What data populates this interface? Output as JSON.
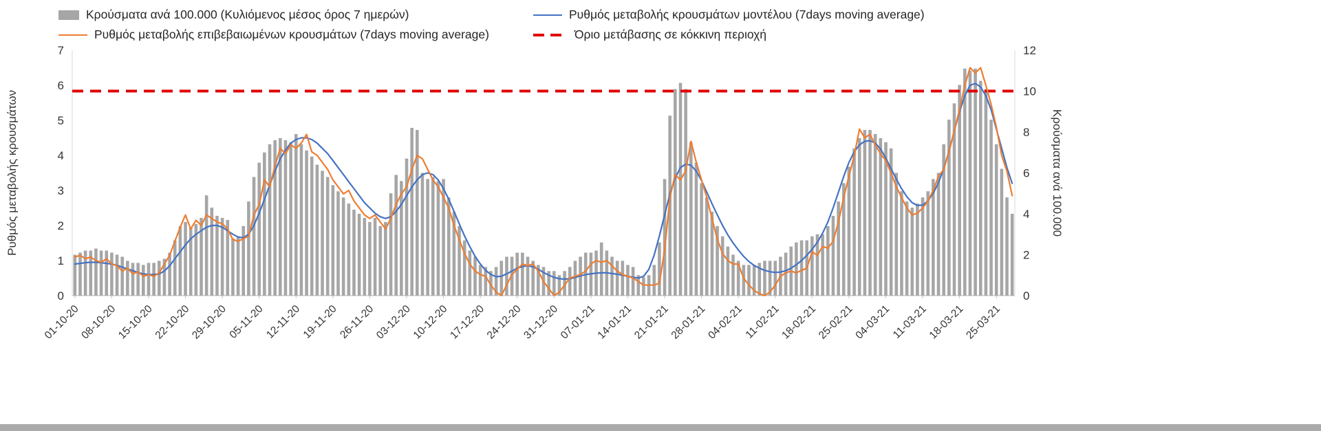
{
  "legend": {
    "bars_label": "Κρούσματα ανά 100.000 (Κυλιόμενος μέσος όρος 7 ημερών)",
    "model_label": "Ρυθμός μεταβολής κρουσμάτων μοντέλου (7days moving average)",
    "confirmed_label": "Ρυθμός μεταβολής επιβεβαιωμένων κρουσμάτων (7days moving average)",
    "threshold_label": "Όριο μετάβασης σε κόκκινη περιοχή"
  },
  "axes": {
    "left_title": "Ρυθμός μεταβολής κρουσμάτων",
    "right_title": "Κρούσματα ανά 100.000"
  },
  "chart_data": {
    "type": "bar+line combo, daily time series",
    "x_unit": "day index from 01-10-20, one bar per day",
    "x_tick_labels": [
      "01-10-20",
      "08-10-20",
      "15-10-20",
      "22-10-20",
      "29-10-20",
      "05-11-20",
      "12-11-20",
      "19-11-20",
      "26-11-20",
      "03-12-20",
      "10-12-20",
      "17-12-20",
      "24-12-20",
      "31-12-20",
      "07-01-21",
      "14-01-21",
      "21-01-21",
      "28-01-21",
      "04-02-21",
      "11-02-21",
      "18-02-21",
      "25-02-21",
      "04-03-21",
      "11-03-21",
      "18-03-21",
      "25-03-21"
    ],
    "x_tick_positions": [
      0,
      7,
      14,
      21,
      28,
      35,
      42,
      49,
      56,
      63,
      70,
      77,
      84,
      91,
      98,
      105,
      112,
      119,
      126,
      133,
      140,
      147,
      154,
      161,
      168,
      175
    ],
    "left_axis": {
      "title": "Ρυθμός μεταβολής κρουσμάτων",
      "min": 0,
      "max": 7,
      "ticks": [
        0,
        1,
        2,
        3,
        4,
        5,
        6,
        7
      ]
    },
    "right_axis": {
      "title": "Κρούσματα ανά 100.000",
      "min": 0,
      "max": 12,
      "ticks": [
        0,
        2,
        4,
        6,
        8,
        10,
        12
      ]
    },
    "threshold": {
      "label": "Όριο μετάβασης σε κόκκινη περιοχή",
      "value_right_axis": 10
    },
    "colors": {
      "bars": "#a6a6a6",
      "model": "#4472c4",
      "confirmed": "#ed7d31",
      "threshold": "#e00000",
      "axis": "#bfbfbf",
      "tick_text": "#333333"
    },
    "series_bars": {
      "name": "Κρούσματα ανά 100.000 (Κυλιόμενος μέσος όρος 7 ημερών)",
      "axis": "right",
      "values": [
        2.0,
        2.1,
        2.2,
        2.2,
        2.3,
        2.2,
        2.2,
        2.1,
        2.0,
        1.9,
        1.7,
        1.6,
        1.6,
        1.5,
        1.6,
        1.6,
        1.7,
        1.8,
        2.1,
        2.7,
        3.4,
        3.6,
        3.3,
        3.5,
        3.8,
        4.9,
        4.3,
        3.9,
        3.8,
        3.7,
        2.8,
        2.9,
        3.4,
        4.6,
        5.8,
        6.5,
        7.0,
        7.4,
        7.6,
        7.7,
        7.6,
        7.5,
        7.9,
        7.4,
        7.1,
        6.8,
        6.4,
        6.1,
        5.8,
        5.4,
        5.1,
        4.8,
        4.5,
        4.2,
        4.0,
        3.8,
        3.6,
        3.8,
        3.4,
        3.6,
        5.0,
        5.9,
        5.6,
        6.7,
        8.2,
        8.1,
        6.0,
        5.7,
        5.8,
        5.6,
        5.7,
        4.8,
        4.1,
        3.4,
        2.7,
        2.2,
        1.9,
        1.5,
        1.4,
        1.2,
        1.4,
        1.7,
        1.9,
        1.9,
        2.1,
        2.1,
        1.9,
        1.7,
        1.5,
        1.4,
        1.2,
        1.2,
        1.0,
        1.2,
        1.4,
        1.7,
        1.9,
        2.1,
        2.1,
        2.2,
        2.6,
        2.2,
        1.9,
        1.7,
        1.7,
        1.5,
        1.4,
        1.0,
        0.9,
        1.0,
        1.5,
        2.6,
        5.7,
        8.8,
        10.1,
        10.4,
        10.1,
        7.5,
        6.5,
        5.5,
        4.8,
        4.1,
        3.4,
        2.9,
        2.4,
        2.0,
        1.7,
        1.5,
        1.5,
        1.5,
        1.6,
        1.7,
        1.7,
        1.7,
        1.9,
        2.1,
        2.4,
        2.6,
        2.7,
        2.7,
        2.9,
        3.0,
        3.0,
        3.4,
        3.9,
        4.6,
        5.5,
        6.3,
        7.2,
        7.7,
        8.1,
        8.1,
        7.9,
        7.7,
        7.5,
        7.2,
        6.0,
        5.1,
        4.6,
        4.3,
        4.5,
        4.8,
        5.1,
        5.7,
        6.0,
        7.4,
        8.6,
        9.4,
        10.3,
        11.1,
        11.0,
        11.1,
        10.5,
        10.1,
        8.6,
        7.4,
        6.2,
        4.8,
        4.0
      ]
    },
    "series_model": {
      "name": "Ρυθμός μεταβολής κρουσμάτων μοντέλου (7days moving average)",
      "axis": "left",
      "values": [
        0.9,
        0.92,
        0.94,
        0.95,
        0.95,
        0.94,
        0.92,
        0.9,
        0.86,
        0.81,
        0.76,
        0.71,
        0.66,
        0.62,
        0.6,
        0.6,
        0.62,
        0.7,
        0.85,
        1.05,
        1.25,
        1.45,
        1.62,
        1.75,
        1.85,
        1.95,
        2.0,
        2.0,
        1.95,
        1.85,
        1.75,
        1.67,
        1.65,
        1.75,
        2.0,
        2.35,
        2.75,
        3.15,
        3.55,
        3.9,
        4.15,
        4.35,
        4.45,
        4.5,
        4.5,
        4.45,
        4.35,
        4.2,
        4.05,
        3.85,
        3.65,
        3.45,
        3.25,
        3.05,
        2.85,
        2.65,
        2.5,
        2.35,
        2.25,
        2.2,
        2.25,
        2.4,
        2.6,
        2.85,
        3.1,
        3.3,
        3.45,
        3.5,
        3.45,
        3.3,
        3.05,
        2.75,
        2.4,
        2.05,
        1.7,
        1.4,
        1.12,
        0.9,
        0.72,
        0.6,
        0.54,
        0.55,
        0.62,
        0.7,
        0.78,
        0.83,
        0.85,
        0.82,
        0.75,
        0.66,
        0.58,
        0.52,
        0.48,
        0.47,
        0.48,
        0.52,
        0.56,
        0.6,
        0.62,
        0.64,
        0.65,
        0.65,
        0.63,
        0.61,
        0.58,
        0.55,
        0.52,
        0.5,
        0.55,
        0.75,
        1.15,
        1.7,
        2.3,
        2.9,
        3.35,
        3.65,
        3.75,
        3.72,
        3.55,
        3.28,
        2.95,
        2.62,
        2.3,
        2.0,
        1.73,
        1.5,
        1.3,
        1.12,
        0.97,
        0.86,
        0.78,
        0.72,
        0.68,
        0.66,
        0.67,
        0.71,
        0.78,
        0.88,
        1.0,
        1.15,
        1.32,
        1.52,
        1.78,
        2.1,
        2.5,
        2.95,
        3.4,
        3.8,
        4.1,
        4.3,
        4.4,
        4.42,
        4.35,
        4.18,
        3.92,
        3.62,
        3.32,
        3.05,
        2.82,
        2.65,
        2.57,
        2.58,
        2.7,
        2.92,
        3.22,
        3.62,
        4.12,
        4.7,
        5.25,
        5.7,
        6.0,
        6.05,
        5.95,
        5.7,
        5.3,
        4.75,
        4.2,
        3.65,
        3.2
      ]
    },
    "series_confirmed": {
      "name": "Ρυθμός μεταβολής επιβεβαιωμένων κρουσμάτων (7days moving average)",
      "axis": "left",
      "values": [
        1.1,
        1.15,
        1.05,
        1.1,
        1.0,
        0.95,
        1.05,
        0.9,
        0.85,
        0.7,
        0.78,
        0.62,
        0.68,
        0.55,
        0.6,
        0.55,
        0.65,
        0.9,
        1.15,
        1.55,
        1.95,
        2.3,
        1.9,
        2.15,
        2.0,
        2.3,
        2.2,
        2.1,
        2.05,
        1.9,
        1.6,
        1.55,
        1.62,
        1.7,
        2.3,
        2.6,
        3.3,
        3.1,
        3.7,
        4.2,
        4.05,
        4.3,
        4.2,
        4.35,
        4.6,
        4.1,
        4.0,
        3.8,
        3.6,
        3.3,
        3.1,
        2.9,
        3.0,
        2.7,
        2.5,
        2.3,
        2.2,
        2.3,
        2.1,
        1.9,
        2.2,
        2.6,
        2.9,
        3.1,
        3.6,
        4.0,
        3.9,
        3.6,
        3.3,
        3.1,
        2.8,
        2.5,
        2.0,
        1.6,
        1.2,
        0.9,
        0.7,
        0.6,
        0.55,
        0.3,
        0.1,
        0.0,
        0.3,
        0.6,
        0.75,
        0.9,
        0.85,
        0.9,
        0.7,
        0.4,
        0.2,
        0.0,
        0.1,
        0.3,
        0.5,
        0.55,
        0.6,
        0.7,
        0.9,
        1.0,
        0.95,
        1.0,
        0.85,
        0.7,
        0.6,
        0.55,
        0.5,
        0.4,
        0.3,
        0.3,
        0.3,
        0.35,
        1.3,
        2.8,
        3.45,
        3.3,
        3.55,
        4.4,
        3.8,
        3.3,
        2.8,
        2.2,
        1.6,
        1.2,
        1.0,
        0.9,
        0.9,
        0.5,
        0.3,
        0.15,
        0.05,
        0.0,
        0.1,
        0.3,
        0.55,
        0.65,
        0.7,
        0.65,
        0.72,
        0.78,
        1.25,
        1.15,
        1.4,
        1.35,
        1.55,
        2.1,
        2.8,
        3.4,
        4.0,
        4.75,
        4.5,
        4.6,
        4.3,
        4.05,
        3.85,
        3.5,
        3.1,
        2.8,
        2.5,
        2.3,
        2.35,
        2.5,
        2.7,
        3.0,
        3.4,
        3.6,
        4.1,
        4.7,
        5.3,
        6.0,
        6.5,
        6.35,
        6.5,
        6.0,
        5.45,
        4.8,
        4.0,
        3.55,
        2.85
      ]
    }
  }
}
